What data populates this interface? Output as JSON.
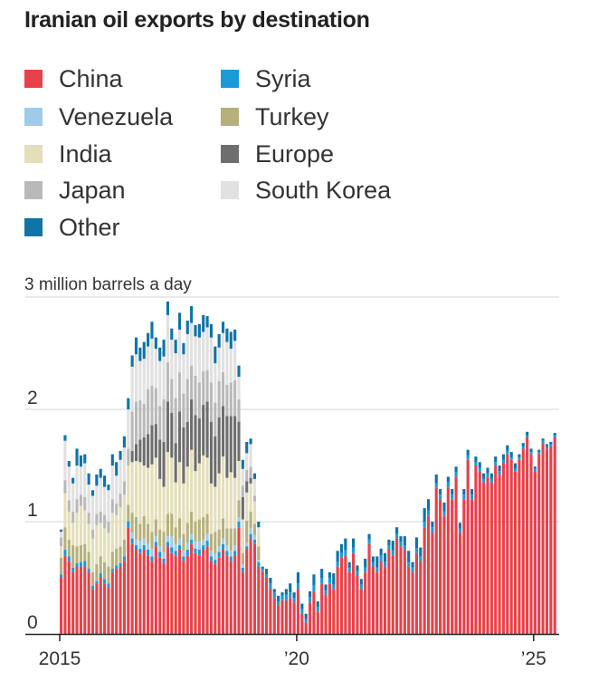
{
  "title": "Iranian oil exports by destination",
  "legend": [
    {
      "name": "China",
      "color": "#e8414a"
    },
    {
      "name": "Syria",
      "color": "#1a9bd7"
    },
    {
      "name": "Venezuela",
      "color": "#9fcbeb"
    },
    {
      "name": "Turkey",
      "color": "#b6b07c"
    },
    {
      "name": "India",
      "color": "#e4deba"
    },
    {
      "name": "Europe",
      "color": "#6e6e6e"
    },
    {
      "name": "Japan",
      "color": "#b9b9b9"
    },
    {
      "name": "South Korea",
      "color": "#e1e1e1"
    },
    {
      "name": "Other",
      "color": "#0f74a8"
    }
  ],
  "chart_data": {
    "type": "bar",
    "stacked": true,
    "title": "Iranian oil exports by destination",
    "ylabel": "3 million barrels a day",
    "ylim": [
      0,
      3
    ],
    "yticks": [
      0,
      1,
      2
    ],
    "ytick_labels": [
      "0",
      "1",
      "2"
    ],
    "xticks": [
      2015,
      2020,
      2025
    ],
    "xtick_labels": [
      "2015",
      "’20",
      "’25"
    ],
    "x_start": 2015.0,
    "x_end": 2025.5,
    "frequency": "monthly",
    "series_order": [
      "China",
      "Syria",
      "Venezuela",
      "Turkey",
      "India",
      "Europe",
      "Japan",
      "South Korea",
      "Other"
    ],
    "segments": [
      {
        "name": "China",
        "values": [
          0.5,
          0.7,
          0.65,
          0.55,
          0.6,
          0.6,
          0.6,
          0.55,
          0.4,
          0.45,
          0.5,
          0.45,
          0.42,
          0.55,
          0.58,
          0.6,
          0.65,
          0.95,
          0.8,
          0.75,
          0.72,
          0.75,
          0.7,
          0.65,
          0.78,
          0.68,
          0.63,
          0.78,
          0.72,
          0.7,
          0.75,
          0.65,
          0.7,
          0.8,
          0.72,
          0.7,
          0.75,
          0.78,
          0.65,
          0.62,
          0.68,
          0.75,
          0.7,
          0.65,
          0.7,
          0.95,
          0.55,
          0.75,
          0.85,
          0.8,
          0.6,
          0.55,
          0.5,
          0.4,
          0.32,
          0.25,
          0.3,
          0.3,
          0.32,
          0.28,
          0.4,
          0.18,
          0.1,
          0.28,
          0.38,
          0.2,
          0.45,
          0.35,
          0.45,
          0.4,
          0.6,
          0.68,
          0.7,
          0.55,
          0.72,
          0.52,
          0.4,
          0.55,
          0.8,
          0.6,
          0.55,
          0.65,
          0.6,
          0.75,
          0.7,
          0.85,
          0.78,
          0.75,
          0.6,
          0.55,
          0.72,
          0.65,
          0.95,
          1.05,
          0.9,
          1.3,
          1.2,
          1.05,
          1.3,
          1.2,
          1.4,
          0.9,
          1.2,
          1.55,
          1.2,
          1.5,
          1.45,
          1.35,
          1.4,
          1.35,
          1.5,
          1.42,
          1.52,
          1.6,
          1.55,
          1.45,
          1.55,
          1.65,
          1.75,
          1.6,
          1.45,
          1.6,
          1.7,
          1.65,
          1.67,
          1.75
        ]
      },
      {
        "name": "Syria",
        "values": [
          0.03,
          0.05,
          0.04,
          0.04,
          0.03,
          0.04,
          0.05,
          0.03,
          0.03,
          0.02,
          0.04,
          0.04,
          0.03,
          0.03,
          0.03,
          0.03,
          0.04,
          0.05,
          0.05,
          0.04,
          0.04,
          0.04,
          0.05,
          0.04,
          0.04,
          0.05,
          0.04,
          0.04,
          0.05,
          0.04,
          0.04,
          0.04,
          0.05,
          0.04,
          0.04,
          0.05,
          0.04,
          0.05,
          0.04,
          0.04,
          0.05,
          0.05,
          0.04,
          0.04,
          0.04,
          0.05,
          0.04,
          0.03,
          0.04,
          0.04,
          0.04,
          0.03,
          0.03,
          0.05,
          0.05,
          0.04,
          0.04,
          0.05,
          0.05,
          0.04,
          0.05,
          0.04,
          0.03,
          0.05,
          0.05,
          0.04,
          0.05,
          0.04,
          0.05,
          0.04,
          0.04,
          0.04,
          0.05,
          0.04,
          0.05,
          0.04,
          0.04,
          0.04,
          0.04,
          0.04,
          0.04,
          0.05,
          0.04,
          0.04,
          0.05,
          0.04,
          0.04,
          0.04,
          0.04,
          0.04,
          0.04,
          0.04,
          0.05,
          0.05,
          0.05,
          0.04,
          0.04,
          0.04,
          0.05,
          0.04,
          0.04,
          0.04,
          0.04,
          0.04,
          0.04,
          0.03,
          0.03,
          0.03,
          0.03,
          0.03,
          0.03,
          0.03,
          0.03,
          0.03,
          0.02,
          0.02,
          0.02,
          0.02,
          0.02,
          0.02,
          0.02,
          0.02,
          0.02,
          0.02,
          0.02,
          0.02
        ]
      },
      {
        "name": "Venezuela",
        "values": [
          0,
          0,
          0,
          0,
          0,
          0,
          0,
          0,
          0,
          0,
          0,
          0,
          0,
          0,
          0,
          0,
          0,
          0,
          0.05,
          0.05,
          0.07,
          0.06,
          0.05,
          0.07,
          0.05,
          0.05,
          0.06,
          0.05,
          0.1,
          0.06,
          0.06,
          0.05,
          0.06,
          0.05,
          0.06,
          0.07,
          0.05,
          0.06,
          0.05,
          0.05,
          0.05,
          0.05,
          0.05,
          0.05,
          0.05,
          0.04,
          0.03,
          0.03,
          0.05,
          0.04,
          0.02,
          0,
          0,
          0,
          0,
          0,
          0,
          0,
          0,
          0,
          0,
          0,
          0,
          0,
          0,
          0,
          0,
          0,
          0,
          0,
          0,
          0,
          0,
          0,
          0,
          0,
          0,
          0,
          0,
          0,
          0,
          0,
          0,
          0,
          0,
          0,
          0,
          0,
          0,
          0,
          0,
          0,
          0,
          0,
          0,
          0,
          0,
          0,
          0,
          0,
          0,
          0,
          0,
          0,
          0,
          0,
          0,
          0,
          0,
          0,
          0,
          0,
          0,
          0,
          0,
          0,
          0,
          0,
          0,
          0,
          0,
          0,
          0,
          0,
          0,
          0
        ]
      },
      {
        "name": "Turkey",
        "values": [
          0.15,
          0.2,
          0.15,
          0.2,
          0.15,
          0.15,
          0.15,
          0.15,
          0.12,
          0.15,
          0.15,
          0.15,
          0.15,
          0.15,
          0.15,
          0.15,
          0.15,
          0.15,
          0.18,
          0.2,
          0.15,
          0.2,
          0.18,
          0.15,
          0.15,
          0.15,
          0.18,
          0.2,
          0.2,
          0.15,
          0.18,
          0.15,
          0.18,
          0.2,
          0.18,
          0.2,
          0.2,
          0.18,
          0.15,
          0.2,
          0.15,
          0.18,
          0.15,
          0.2,
          0.15,
          0.15,
          0.1,
          0.2,
          0.15,
          0.1,
          0.12,
          0,
          0,
          0,
          0,
          0,
          0,
          0,
          0,
          0,
          0,
          0,
          0,
          0,
          0,
          0,
          0,
          0,
          0,
          0,
          0,
          0,
          0,
          0,
          0,
          0,
          0,
          0,
          0,
          0,
          0,
          0,
          0,
          0,
          0,
          0,
          0,
          0,
          0,
          0,
          0,
          0,
          0,
          0,
          0,
          0,
          0,
          0,
          0,
          0,
          0,
          0,
          0,
          0,
          0,
          0,
          0,
          0,
          0,
          0,
          0,
          0,
          0,
          0,
          0,
          0,
          0,
          0,
          0,
          0,
          0,
          0,
          0,
          0,
          0,
          0
        ]
      },
      {
        "name": "India",
        "values": [
          0.1,
          0.3,
          0.25,
          0.2,
          0.3,
          0.35,
          0.3,
          0.25,
          0.3,
          0.35,
          0.3,
          0.3,
          0.3,
          0.35,
          0.3,
          0.35,
          0.4,
          0.35,
          0.45,
          0.5,
          0.55,
          0.45,
          0.5,
          0.6,
          0.55,
          0.45,
          0.4,
          0.55,
          0.5,
          0.4,
          0.5,
          0.45,
          0.5,
          0.55,
          0.45,
          0.5,
          0.55,
          0.5,
          0.45,
          0.4,
          0.5,
          0.55,
          0.45,
          0.5,
          0.45,
          0.35,
          0.3,
          0.25,
          0.25,
          0.2,
          0.12,
          0,
          0,
          0,
          0,
          0,
          0,
          0,
          0,
          0,
          0,
          0,
          0,
          0,
          0,
          0,
          0,
          0,
          0,
          0,
          0,
          0,
          0,
          0,
          0,
          0,
          0,
          0,
          0,
          0,
          0,
          0,
          0,
          0,
          0,
          0,
          0,
          0,
          0,
          0,
          0,
          0,
          0,
          0,
          0,
          0,
          0,
          0,
          0,
          0,
          0,
          0,
          0,
          0,
          0,
          0,
          0,
          0,
          0,
          0,
          0,
          0,
          0,
          0,
          0,
          0,
          0,
          0,
          0,
          0,
          0,
          0,
          0,
          0,
          0,
          0
        ]
      },
      {
        "name": "Europe",
        "values": [
          0,
          0,
          0,
          0,
          0,
          0,
          0,
          0,
          0,
          0,
          0,
          0,
          0,
          0,
          0,
          0,
          0,
          0,
          0.1,
          0.15,
          0.2,
          0.25,
          0.3,
          0.35,
          0.3,
          0.35,
          0.4,
          0.45,
          0.4,
          0.35,
          0.45,
          0.5,
          0.4,
          0.45,
          0.5,
          0.4,
          0.45,
          0.5,
          0.55,
          0.45,
          0.5,
          0.45,
          0.55,
          0.5,
          0.55,
          0.35,
          0.2,
          0.1,
          0.05,
          0,
          0,
          0,
          0,
          0,
          0,
          0,
          0,
          0,
          0,
          0,
          0,
          0,
          0,
          0,
          0,
          0,
          0,
          0,
          0,
          0,
          0,
          0,
          0,
          0,
          0,
          0,
          0,
          0,
          0,
          0,
          0,
          0,
          0,
          0,
          0,
          0,
          0,
          0,
          0,
          0,
          0,
          0,
          0,
          0,
          0,
          0,
          0,
          0,
          0,
          0,
          0,
          0,
          0,
          0,
          0,
          0,
          0,
          0,
          0,
          0,
          0,
          0,
          0,
          0,
          0,
          0,
          0,
          0,
          0,
          0,
          0,
          0,
          0,
          0
        ]
      },
      {
        "name": "Japan",
        "values": [
          0.08,
          0.12,
          0.1,
          0.1,
          0.12,
          0.1,
          0.12,
          0.1,
          0.08,
          0.1,
          0.1,
          0.12,
          0.1,
          0.12,
          0.1,
          0.12,
          0.12,
          0.15,
          0.35,
          0.38,
          0.35,
          0.3,
          0.4,
          0.35,
          0.32,
          0.3,
          0.38,
          0.35,
          0.3,
          0.4,
          0.35,
          0.3,
          0.38,
          0.3,
          0.35,
          0.32,
          0.3,
          0.28,
          0.35,
          0.3,
          0.32,
          0.3,
          0.28,
          0.3,
          0.32,
          0.2,
          0.1,
          0.1,
          0.1,
          0.05,
          0,
          0,
          0,
          0,
          0,
          0,
          0,
          0,
          0,
          0,
          0,
          0,
          0,
          0,
          0,
          0,
          0,
          0,
          0,
          0,
          0,
          0,
          0,
          0,
          0,
          0,
          0,
          0,
          0,
          0,
          0,
          0,
          0,
          0,
          0,
          0,
          0,
          0,
          0,
          0,
          0,
          0,
          0,
          0,
          0,
          0,
          0,
          0,
          0,
          0,
          0,
          0,
          0,
          0,
          0,
          0,
          0,
          0,
          0,
          0,
          0,
          0,
          0,
          0,
          0,
          0,
          0,
          0,
          0,
          0,
          0,
          0,
          0,
          0,
          0
        ]
      },
      {
        "name": "South Korea",
        "values": [
          0.05,
          0.35,
          0.3,
          0.25,
          0.3,
          0.25,
          0.3,
          0.25,
          0.3,
          0.25,
          0.3,
          0.25,
          0.28,
          0.3,
          0.25,
          0.3,
          0.3,
          0.35,
          0.4,
          0.42,
          0.35,
          0.4,
          0.38,
          0.42,
          0.35,
          0.4,
          0.38,
          0.42,
          0.35,
          0.4,
          0.38,
          0.35,
          0.4,
          0.38,
          0.35,
          0.4,
          0.35,
          0.38,
          0.4,
          0.35,
          0.3,
          0.35,
          0.38,
          0.3,
          0.35,
          0.2,
          0.15,
          0.15,
          0.2,
          0.15,
          0.05,
          0,
          0,
          0,
          0,
          0,
          0,
          0,
          0,
          0,
          0,
          0,
          0,
          0,
          0,
          0,
          0,
          0,
          0,
          0,
          0,
          0,
          0,
          0,
          0,
          0,
          0,
          0,
          0,
          0,
          0,
          0,
          0,
          0,
          0,
          0,
          0,
          0,
          0,
          0,
          0,
          0,
          0,
          0,
          0,
          0,
          0,
          0,
          0,
          0,
          0,
          0,
          0,
          0,
          0,
          0,
          0,
          0,
          0,
          0,
          0,
          0,
          0,
          0,
          0,
          0,
          0,
          0,
          0,
          0,
          0,
          0,
          0,
          0,
          0,
          0
        ]
      },
      {
        "name": "Other",
        "values": [
          0.02,
          0.05,
          0.05,
          0.05,
          0.15,
          0.1,
          0.08,
          0.1,
          0.05,
          0.1,
          0.08,
          0.1,
          0.05,
          0.1,
          0.12,
          0.08,
          0.1,
          0.1,
          0.1,
          0.15,
          0.12,
          0.15,
          0.12,
          0.15,
          0.1,
          0.12,
          0.15,
          0.12,
          0.1,
          0.12,
          0.15,
          0.1,
          0.12,
          0.15,
          0.1,
          0.12,
          0.15,
          0.1,
          0.12,
          0.15,
          0.12,
          0.1,
          0.12,
          0.15,
          0.1,
          0.1,
          0.08,
          0.1,
          0.05,
          0.05,
          0.05,
          0.02,
          0.05,
          0.05,
          0.03,
          0.05,
          0.03,
          0.05,
          0.08,
          0.05,
          0.1,
          0.05,
          0.05,
          0.05,
          0.1,
          0.05,
          0.08,
          0.05,
          0.05,
          0.1,
          0.1,
          0.08,
          0.1,
          0.05,
          0.08,
          0.05,
          0.05,
          0.08,
          0.05,
          0.05,
          0.1,
          0.06,
          0.08,
          0.05,
          0.08,
          0.06,
          0.05,
          0.08,
          0.1,
          0.05,
          0.1,
          0.08,
          0.12,
          0.1,
          0.05,
          0.08,
          0.05,
          0.08,
          0.05,
          0.05,
          0.05,
          0.05,
          0.05,
          0.05,
          0.05,
          0.05,
          0.05,
          0.05,
          0.05,
          0.05,
          0.05,
          0.05,
          0.05,
          0.05,
          0.05,
          0.05,
          0.03,
          0.03,
          0.03,
          0.03,
          0.02,
          0.02,
          0.02,
          0.02,
          0.02,
          0.02
        ]
      }
    ]
  }
}
